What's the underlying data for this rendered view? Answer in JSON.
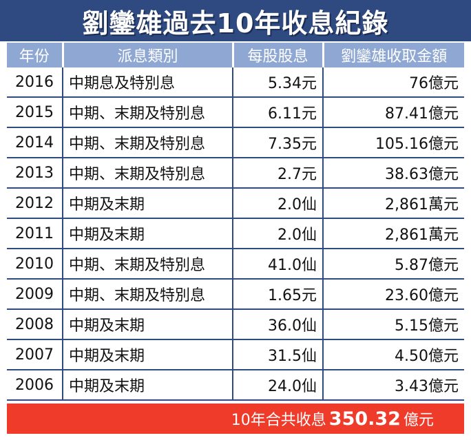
{
  "title": "劉鑾雄過去10年收息紀錄",
  "table": {
    "headers": [
      "年份",
      "派息類別",
      "每股股息",
      "劉鑾雄收取金額"
    ],
    "rows": [
      {
        "year": "2016",
        "type": "中期息及特別息",
        "dps": "5.34元",
        "amount": "76億元"
      },
      {
        "year": "2015",
        "type": "中期、末期及特別息",
        "dps": "6.11元",
        "amount": "87.41億元"
      },
      {
        "year": "2014",
        "type": "中期、末期及特別息",
        "dps": "7.35元",
        "amount": "105.16億元"
      },
      {
        "year": "2013",
        "type": "中期、末期及特別息",
        "dps": "2.7元",
        "amount": "38.63億元"
      },
      {
        "year": "2012",
        "type": "中期及末期",
        "dps": "2.0仙",
        "amount": "2,861萬元"
      },
      {
        "year": "2011",
        "type": "中期及末期",
        "dps": "2.0仙",
        "amount": "2,861萬元"
      },
      {
        "year": "2010",
        "type": "中期、末期及特別息",
        "dps": "41.0仙",
        "amount": "5.87億元"
      },
      {
        "year": "2009",
        "type": "中期、末期及特別息",
        "dps": "1.65元",
        "amount": "23.60億元"
      },
      {
        "year": "2008",
        "type": "中期及末期",
        "dps": "36.0仙",
        "amount": "5.15億元"
      },
      {
        "year": "2007",
        "type": "中期及末期",
        "dps": "31.5仙",
        "amount": "4.50億元"
      },
      {
        "year": "2006",
        "type": "中期及末期",
        "dps": "24.0仙",
        "amount": "3.43億元"
      }
    ]
  },
  "total": {
    "prefix": "10年合共收息",
    "value": "350.32",
    "suffix": "億元"
  },
  "colors": {
    "title_bg": "#2e4a80",
    "header_bg": "#8ea7d3",
    "grid_line": "#2e4a80",
    "total_bg": "#ef3b2a"
  }
}
